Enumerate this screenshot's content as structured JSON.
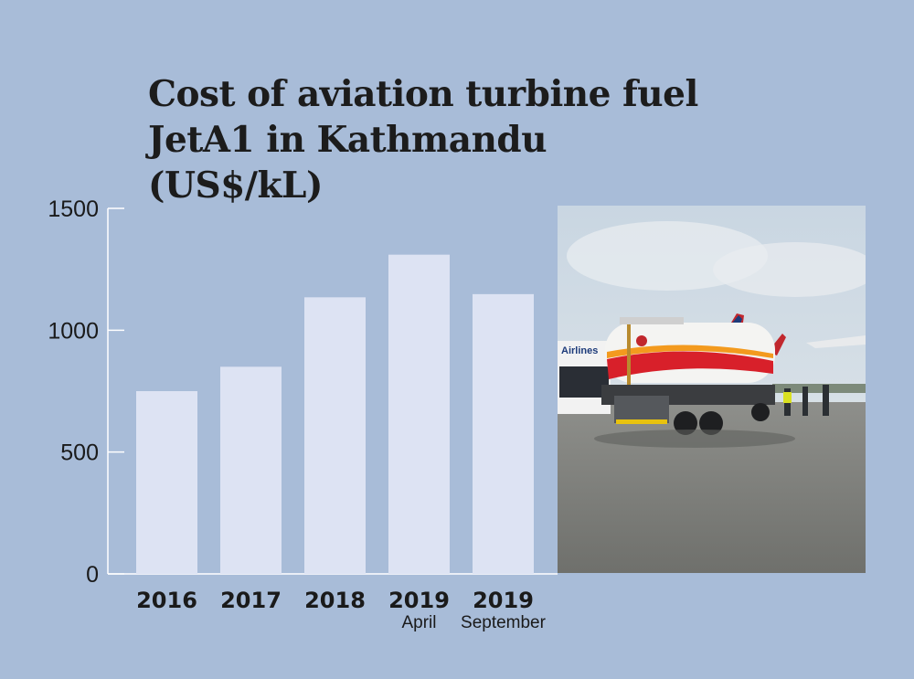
{
  "title": {
    "line1": "Cost of aviation turbine fuel",
    "line2": "JetA1 in Kathmandu (US$/kL)"
  },
  "colors": {
    "background": "#a8bcd8",
    "bar": "#dde3f3",
    "axis": "#ffffff",
    "text": "#1a1a1a"
  },
  "photo": {
    "description_icon": "fuel-tanker-photo",
    "bus_text": "Airlines"
  },
  "chart_data": {
    "type": "bar",
    "title": "Cost of aviation turbine fuel JetA1 in Kathmandu (US$/kL)",
    "categories": [
      "2016",
      "2017",
      "2018",
      "2019",
      "2019"
    ],
    "category_sublabels": [
      "",
      "",
      "",
      "April",
      "September"
    ],
    "values": [
      750,
      850,
      1135,
      1310,
      1148
    ],
    "ylim": [
      0,
      1500
    ],
    "yticks": [
      0,
      500,
      1000,
      1500
    ],
    "xlabel": "",
    "ylabel": "",
    "grid": false
  }
}
